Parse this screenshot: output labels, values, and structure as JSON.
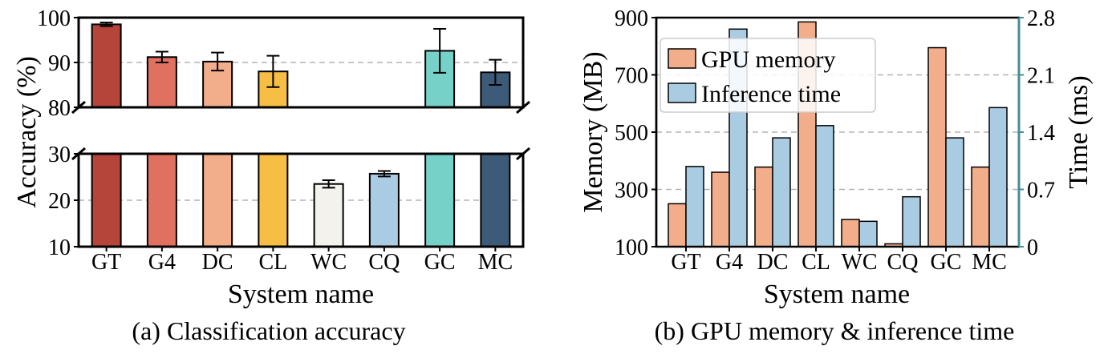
{
  "chart_data": [
    {
      "type": "bar",
      "caption": "(a)  Classification accuracy",
      "xlabel": "System name",
      "ylabel": "Accuracy (%)",
      "categories": [
        "GT",
        "G4",
        "DC",
        "CL",
        "WC",
        "CQ",
        "GC",
        "MC"
      ],
      "values": [
        98.5,
        91.2,
        90.2,
        88.0,
        23.5,
        25.7,
        92.6,
        87.8
      ],
      "errors": [
        0.4,
        1.2,
        2.0,
        3.5,
        0.8,
        0.6,
        4.9,
        2.8
      ],
      "colors": [
        "#b5443a",
        "#e07060",
        "#f2ad8a",
        "#f6be45",
        "#f3f2ec",
        "#a9cce3",
        "#76d1c9",
        "#3d5b78"
      ],
      "y_upper_ticks": [
        "80",
        "90",
        "100"
      ],
      "y_lower_ticks": [
        "10",
        "20",
        "30"
      ],
      "ylim_upper": [
        80,
        100
      ],
      "ylim_lower": [
        10,
        30
      ],
      "broken_axis": true,
      "grid": "horizontal dashed"
    },
    {
      "type": "bar",
      "caption": "(b)  GPU memory & inference time",
      "xlabel": "System name",
      "ylabel_left": "Memory (MB)",
      "ylabel_right": "Time (ms)",
      "categories": [
        "GT",
        "G4",
        "DC",
        "CL",
        "WC",
        "CQ",
        "GC",
        "MC"
      ],
      "series": [
        {
          "name": "GPU memory",
          "axis": "left",
          "color": "#f2ad8a",
          "values": [
            250,
            360,
            378,
            885,
            195,
            110,
            795,
            378
          ]
        },
        {
          "name": "Inference time",
          "axis": "right",
          "color": "#a9cce3",
          "values": [
            0.98,
            2.66,
            1.33,
            1.48,
            0.31,
            0.61,
            1.33,
            1.7
          ]
        }
      ],
      "y_left_ticks": [
        "100",
        "300",
        "500",
        "700",
        "900"
      ],
      "y_right_ticks": [
        "0",
        "0.7",
        "1.4",
        "2.1",
        "2.8"
      ],
      "ylim_left": [
        100,
        900
      ],
      "ylim_right": [
        0,
        2.8
      ],
      "legend": "top-left",
      "grid": "horizontal dashed"
    }
  ]
}
